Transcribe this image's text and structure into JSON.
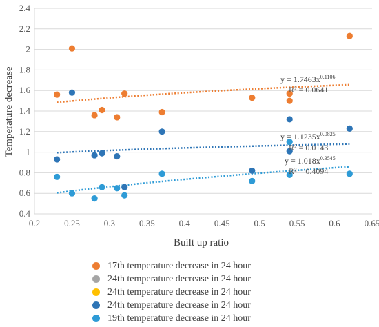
{
  "chart_data": {
    "type": "scatter",
    "title": "",
    "xlabel": "Built up ratio",
    "ylabel": "Temperature decrease",
    "xlim": [
      0.2,
      0.65
    ],
    "ylim": [
      0.4,
      2.4
    ],
    "x_ticks": [
      "0.2",
      "0.25",
      "0.3",
      "0.35",
      "0.4",
      "0.45",
      "0.5",
      "0.55",
      "0.6",
      "0.65"
    ],
    "y_ticks": [
      "0.4",
      "0.6",
      "0.8",
      "1",
      "1.2",
      "1.4",
      "1.6",
      "1.8",
      "2",
      "2.2",
      "2.4"
    ],
    "grid": "horizontal",
    "legend_position": "bottom",
    "series": [
      {
        "name": "17th temperature decrease in 24 hour",
        "color": "#ED7D31",
        "points": [
          {
            "x": 0.23,
            "y": 1.56
          },
          {
            "x": 0.25,
            "y": 2.01
          },
          {
            "x": 0.28,
            "y": 1.36
          },
          {
            "x": 0.29,
            "y": 1.41
          },
          {
            "x": 0.31,
            "y": 1.34
          },
          {
            "x": 0.32,
            "y": 1.57
          },
          {
            "x": 0.37,
            "y": 1.39
          },
          {
            "x": 0.49,
            "y": 1.53
          },
          {
            "x": 0.54,
            "y": 1.57
          },
          {
            "x": 0.54,
            "y": 1.5
          },
          {
            "x": 0.62,
            "y": 2.13
          }
        ],
        "trendline": {
          "a": 1.7463,
          "b": 0.1106
        },
        "equation": "y = 1.7463x",
        "exponent": "0.1106",
        "r2": "R² = 0.0641"
      },
      {
        "name": "24th temperature decrease in 24 hour",
        "color": "#A5A5A5",
        "points": []
      },
      {
        "name": "24th temperature decrease in 24 hour",
        "color": "#FFC000",
        "points": []
      },
      {
        "name": "24th temperature decrease in 24 hour",
        "color": "#2E75B6",
        "points": [
          {
            "x": 0.23,
            "y": 0.93
          },
          {
            "x": 0.25,
            "y": 1.58
          },
          {
            "x": 0.28,
            "y": 0.97
          },
          {
            "x": 0.29,
            "y": 0.99
          },
          {
            "x": 0.31,
            "y": 0.96
          },
          {
            "x": 0.32,
            "y": 0.66
          },
          {
            "x": 0.37,
            "y": 1.2
          },
          {
            "x": 0.49,
            "y": 0.82
          },
          {
            "x": 0.54,
            "y": 1.32
          },
          {
            "x": 0.54,
            "y": 1.01
          },
          {
            "x": 0.62,
            "y": 1.23
          }
        ],
        "trendline": {
          "a": 1.1235,
          "b": 0.0825
        },
        "equation": "y = 1.1235x",
        "exponent": "0.0825",
        "r2": "R² = 0.0143"
      },
      {
        "name": "19th temperature decrease in 24 hour",
        "color": "#2E9BD6",
        "points": [
          {
            "x": 0.23,
            "y": 0.76
          },
          {
            "x": 0.25,
            "y": 0.6
          },
          {
            "x": 0.28,
            "y": 0.55
          },
          {
            "x": 0.29,
            "y": 0.66
          },
          {
            "x": 0.31,
            "y": 0.65
          },
          {
            "x": 0.32,
            "y": 0.58
          },
          {
            "x": 0.37,
            "y": 0.79
          },
          {
            "x": 0.49,
            "y": 0.72
          },
          {
            "x": 0.54,
            "y": 0.78
          },
          {
            "x": 0.54,
            "y": 1.1
          },
          {
            "x": 0.62,
            "y": 0.79
          }
        ],
        "trendline": {
          "a": 1.018,
          "b": 0.3545
        },
        "equation": "y = 1.018x",
        "exponent": "0.3545",
        "r2": "R² = 0.4094"
      }
    ]
  }
}
